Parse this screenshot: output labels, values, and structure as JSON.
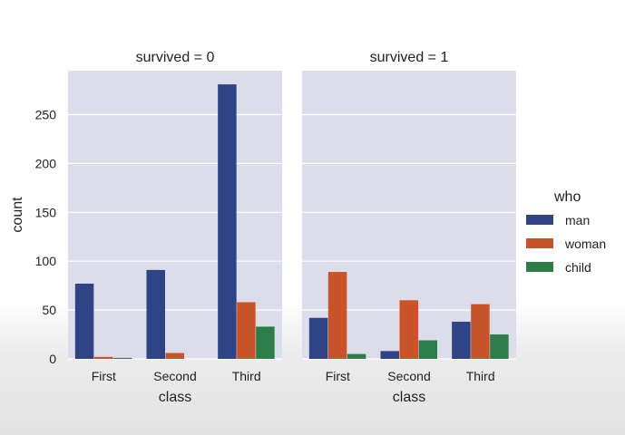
{
  "chart_data": {
    "type": "bar",
    "facet_variable": "survived",
    "panels": [
      {
        "title": "survived = 0",
        "categories": [
          "First",
          "Second",
          "Third"
        ],
        "series": [
          {
            "name": "man",
            "values": [
              77,
              91,
              281
            ]
          },
          {
            "name": "woman",
            "values": [
              2,
              6,
              58
            ]
          },
          {
            "name": "child",
            "values": [
              1,
              0,
              33
            ]
          }
        ]
      },
      {
        "title": "survived = 1",
        "categories": [
          "First",
          "Second",
          "Third"
        ],
        "series": [
          {
            "name": "man",
            "values": [
              42,
              8,
              38
            ]
          },
          {
            "name": "woman",
            "values": [
              89,
              60,
              56
            ]
          },
          {
            "name": "child",
            "values": [
              5,
              19,
              25
            ]
          }
        ]
      }
    ],
    "xlabel": "class",
    "ylabel": "count",
    "ylim": [
      0,
      295
    ],
    "yticks": [
      0,
      50,
      100,
      150,
      200,
      250
    ],
    "grid": true,
    "legend": {
      "title": "who",
      "placement": "right",
      "entries": [
        {
          "name": "man",
          "color": "#2e4485"
        },
        {
          "name": "woman",
          "color": "#c8552a"
        },
        {
          "name": "child",
          "color": "#2d7d48"
        }
      ]
    },
    "panel_background": "#dcdceb"
  }
}
